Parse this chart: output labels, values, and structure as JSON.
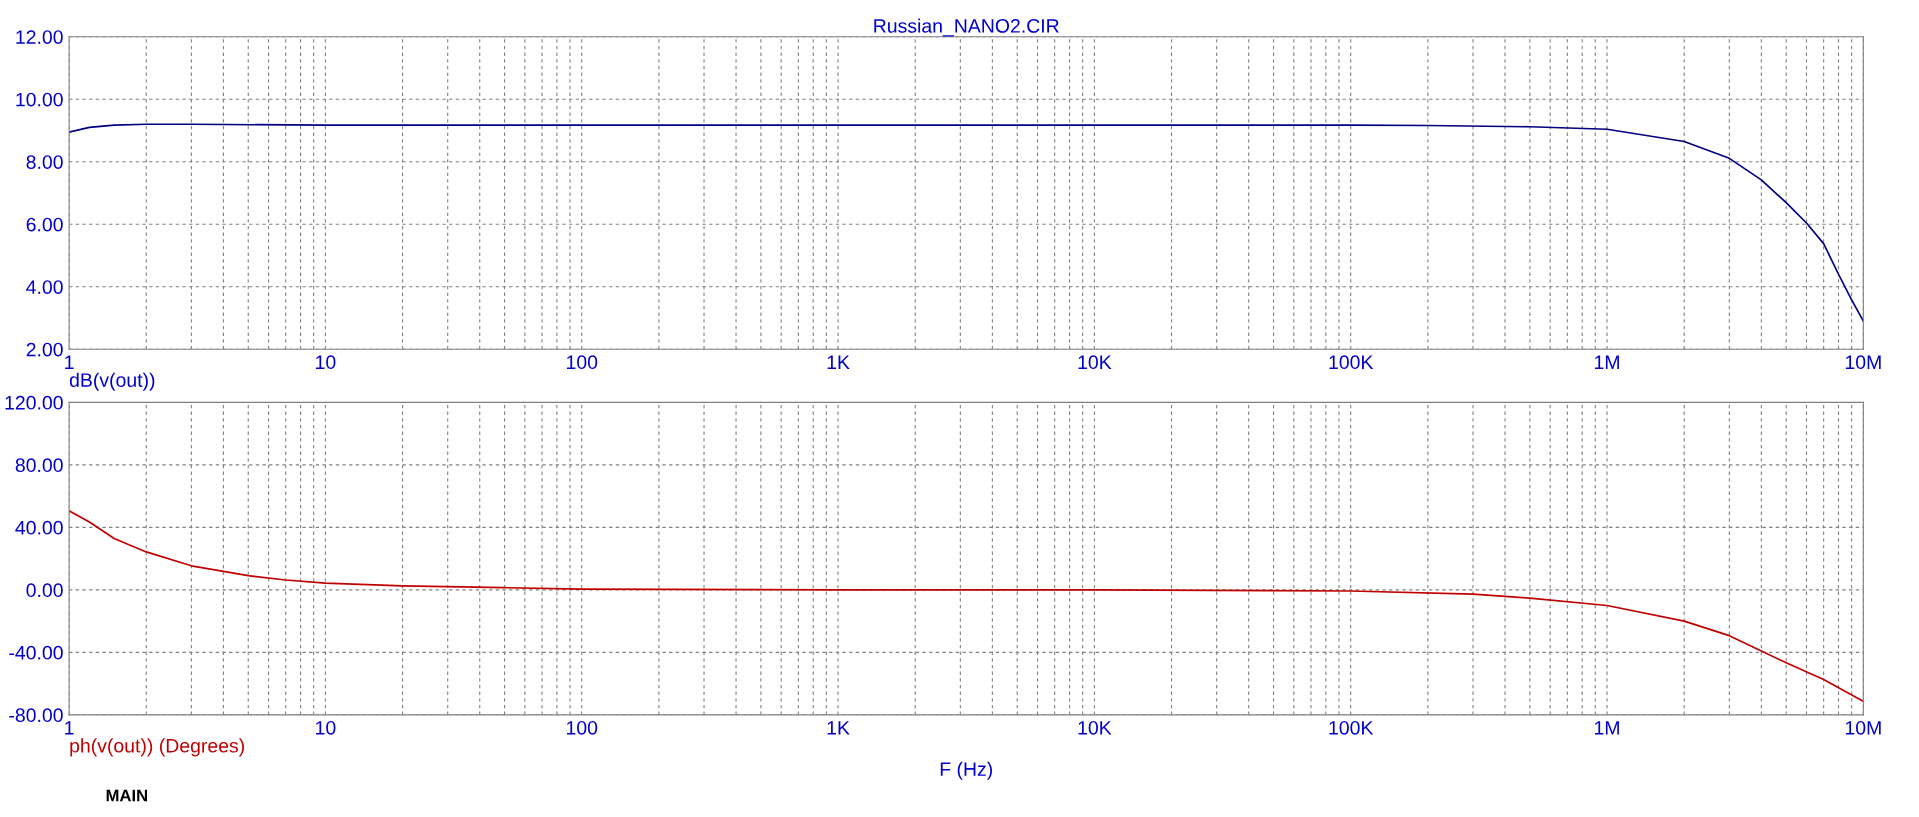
{
  "chart_data": [
    {
      "type": "line",
      "title": "Russian_NANO2.CIR",
      "log": "x",
      "grid": true,
      "line_style": "solid",
      "marker": "none",
      "xlim": [
        1,
        10000000
      ],
      "ylim": [
        2,
        12
      ],
      "yticks": [
        {
          "value": 2,
          "label": "2.00"
        },
        {
          "value": 4,
          "label": "4.00"
        },
        {
          "value": 6,
          "label": "6.00"
        },
        {
          "value": 8,
          "label": "8.00"
        },
        {
          "value": 10,
          "label": "10.00"
        },
        {
          "value": 12,
          "label": "12.00"
        }
      ],
      "xticks": [
        1,
        {
          "value": 2,
          "label": null
        },
        {
          "value": 3,
          "label": null
        },
        {
          "value": 4,
          "label": null
        },
        {
          "value": 5,
          "label": null
        },
        {
          "value": 6,
          "label": null
        },
        {
          "value": 7,
          "label": null
        },
        {
          "value": 8,
          "label": null
        },
        {
          "value": 9,
          "label": null
        },
        10,
        {
          "value": 20,
          "label": null
        },
        {
          "value": 30,
          "label": null
        },
        {
          "value": 40,
          "label": null
        },
        {
          "value": 50,
          "label": null
        },
        {
          "value": 60,
          "label": null
        },
        {
          "value": 70,
          "label": null
        },
        {
          "value": 80,
          "label": null
        },
        {
          "value": 90,
          "label": null
        },
        100,
        {
          "value": 200,
          "label": null
        },
        {
          "value": 300,
          "label": null
        },
        {
          "value": 400,
          "label": null
        },
        {
          "value": 500,
          "label": null
        },
        {
          "value": 600,
          "label": null
        },
        {
          "value": 700,
          "label": null
        },
        {
          "value": 800,
          "label": null
        },
        {
          "value": 900,
          "label": null
        },
        {
          "value": 1000,
          "label": "1K"
        },
        {
          "value": 2000,
          "label": null
        },
        {
          "value": 3000,
          "label": null
        },
        {
          "value": 4000,
          "label": null
        },
        {
          "value": 5000,
          "label": null
        },
        {
          "value": 6000,
          "label": null
        },
        {
          "value": 7000,
          "label": null
        },
        {
          "value": 8000,
          "label": null
        },
        {
          "value": 9000,
          "label": null
        },
        {
          "value": 10000,
          "label": "10K"
        },
        {
          "value": 20000,
          "label": null
        },
        {
          "value": 30000,
          "label": null
        },
        {
          "value": 40000,
          "label": null
        },
        {
          "value": 50000,
          "label": null
        },
        {
          "value": 60000,
          "label": null
        },
        {
          "value": 70000,
          "label": null
        },
        {
          "value": 80000,
          "label": null
        },
        {
          "value": 90000,
          "label": null
        },
        {
          "value": 100000,
          "label": "100K"
        },
        {
          "value": 200000,
          "label": null
        },
        {
          "value": 300000,
          "label": null
        },
        {
          "value": 400000,
          "label": null
        },
        {
          "value": 500000,
          "label": null
        },
        {
          "value": 600000,
          "label": null
        },
        {
          "value": 700000,
          "label": null
        },
        {
          "value": 800000,
          "label": null
        },
        {
          "value": 900000,
          "label": null
        },
        {
          "value": 1000000,
          "label": "1M"
        },
        {
          "value": 2000000,
          "label": null
        },
        {
          "value": 3000000,
          "label": null
        },
        {
          "value": 4000000,
          "label": null
        },
        {
          "value": 5000000,
          "label": null
        },
        {
          "value": 6000000,
          "label": null
        },
        {
          "value": 7000000,
          "label": null
        },
        {
          "value": 8000000,
          "label": null
        },
        {
          "value": 9000000,
          "label": null
        },
        {
          "value": 10000000,
          "label": "10M"
        }
      ],
      "series": [
        {
          "name": "dB(v(out))",
          "color": "#000080",
          "x": [
            1,
            1.2,
            1.5,
            2,
            3,
            10,
            100,
            1000,
            10000,
            100000,
            200000,
            500000,
            1000000,
            2000000,
            3000000,
            4000000,
            5000000,
            6000000,
            7000000,
            8000000,
            9000000,
            10000000
          ],
          "values": [
            8.95,
            9.1,
            9.17,
            9.2,
            9.2,
            9.17,
            9.17,
            9.17,
            9.17,
            9.17,
            9.16,
            9.12,
            9.04,
            8.65,
            8.11,
            7.42,
            6.69,
            6.04,
            5.38,
            4.4,
            3.58,
            2.9
          ]
        }
      ]
    },
    {
      "type": "line",
      "xlabel": "F (Hz)",
      "log": "x",
      "grid": true,
      "line_style": "solid",
      "marker": "none",
      "xlim": [
        1,
        10000000
      ],
      "ylim": [
        -80,
        120
      ],
      "yticks": [
        {
          "value": -80,
          "label": "-80.00"
        },
        {
          "value": -40,
          "label": "-40.00"
        },
        {
          "value": 0,
          "label": "0.00"
        },
        {
          "value": 40,
          "label": "40.00"
        },
        {
          "value": 80,
          "label": "80.00"
        },
        {
          "value": 120,
          "label": "120.00"
        }
      ],
      "xticks": [
        1,
        {
          "value": 2,
          "label": null
        },
        {
          "value": 3,
          "label": null
        },
        {
          "value": 4,
          "label": null
        },
        {
          "value": 5,
          "label": null
        },
        {
          "value": 6,
          "label": null
        },
        {
          "value": 7,
          "label": null
        },
        {
          "value": 8,
          "label": null
        },
        {
          "value": 9,
          "label": null
        },
        10,
        {
          "value": 20,
          "label": null
        },
        {
          "value": 30,
          "label": null
        },
        {
          "value": 40,
          "label": null
        },
        {
          "value": 50,
          "label": null
        },
        {
          "value": 60,
          "label": null
        },
        {
          "value": 70,
          "label": null
        },
        {
          "value": 80,
          "label": null
        },
        {
          "value": 90,
          "label": null
        },
        100,
        {
          "value": 200,
          "label": null
        },
        {
          "value": 300,
          "label": null
        },
        {
          "value": 400,
          "label": null
        },
        {
          "value": 500,
          "label": null
        },
        {
          "value": 600,
          "label": null
        },
        {
          "value": 700,
          "label": null
        },
        {
          "value": 800,
          "label": null
        },
        {
          "value": 900,
          "label": null
        },
        {
          "value": 1000,
          "label": "1K"
        },
        {
          "value": 2000,
          "label": null
        },
        {
          "value": 3000,
          "label": null
        },
        {
          "value": 4000,
          "label": null
        },
        {
          "value": 5000,
          "label": null
        },
        {
          "value": 6000,
          "label": null
        },
        {
          "value": 7000,
          "label": null
        },
        {
          "value": 8000,
          "label": null
        },
        {
          "value": 9000,
          "label": null
        },
        {
          "value": 10000,
          "label": "10K"
        },
        {
          "value": 20000,
          "label": null
        },
        {
          "value": 30000,
          "label": null
        },
        {
          "value": 40000,
          "label": null
        },
        {
          "value": 50000,
          "label": null
        },
        {
          "value": 60000,
          "label": null
        },
        {
          "value": 70000,
          "label": null
        },
        {
          "value": 80000,
          "label": null
        },
        {
          "value": 90000,
          "label": null
        },
        {
          "value": 100000,
          "label": "100K"
        },
        {
          "value": 200000,
          "label": null
        },
        {
          "value": 300000,
          "label": null
        },
        {
          "value": 400000,
          "label": null
        },
        {
          "value": 500000,
          "label": null
        },
        {
          "value": 600000,
          "label": null
        },
        {
          "value": 700000,
          "label": null
        },
        {
          "value": 800000,
          "label": null
        },
        {
          "value": 900000,
          "label": null
        },
        {
          "value": 1000000,
          "label": "1M"
        },
        {
          "value": 2000000,
          "label": null
        },
        {
          "value": 3000000,
          "label": null
        },
        {
          "value": 4000000,
          "label": null
        },
        {
          "value": 5000000,
          "label": null
        },
        {
          "value": 6000000,
          "label": null
        },
        {
          "value": 7000000,
          "label": null
        },
        {
          "value": 8000000,
          "label": null
        },
        {
          "value": 9000000,
          "label": null
        },
        {
          "value": 10000000,
          "label": "10M"
        }
      ],
      "annotations": [
        "MAIN"
      ],
      "series": [
        {
          "name": "ph(v(out)) (Degrees)",
          "color": "#c00000",
          "x": [
            1,
            1.2,
            1.5,
            2,
            3,
            5,
            7,
            10,
            20,
            50,
            100,
            1000,
            10000,
            100000,
            300000,
            500000,
            1000000,
            2000000,
            3000000,
            5000000,
            7000000,
            10000000
          ],
          "values": [
            50.6,
            43.4,
            32.9,
            24.3,
            15.4,
            9.1,
            6.3,
            4.3,
            2.6,
            1.4,
            0.5,
            0,
            0,
            -0.7,
            -2.7,
            -5.3,
            -10,
            -20,
            -29.3,
            -46.7,
            -57.3,
            -71.3
          ]
        }
      ]
    }
  ]
}
